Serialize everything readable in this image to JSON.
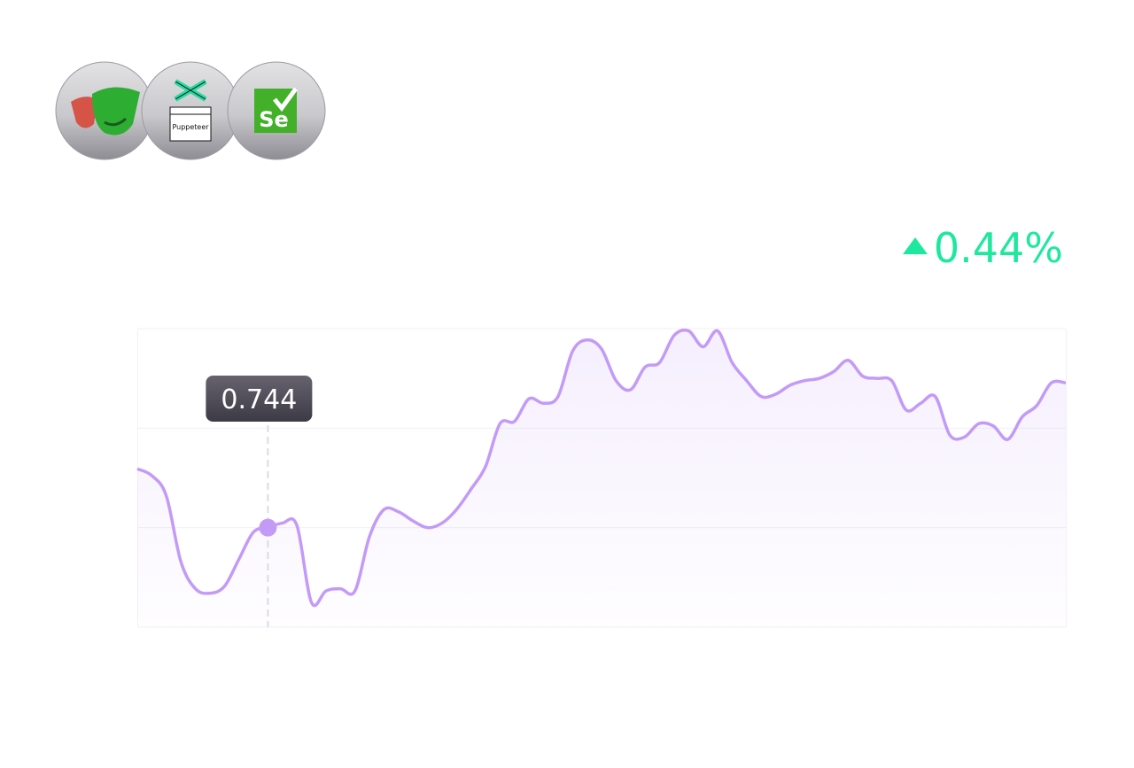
{
  "logo_texts": [
    "Puppeteer",
    "Se"
  ],
  "change": {
    "value": 0.44,
    "label": "0.44%",
    "color": "#1ee89e"
  },
  "chart_data": {
    "type": "area",
    "color": "#c39bf7",
    "highlight_index": 9,
    "values": [
      0.77,
      0.767,
      0.758,
      0.729,
      0.717,
      0.715,
      0.718,
      0.73,
      0.742,
      0.744,
      0.746,
      0.745,
      0.711,
      0.716,
      0.717,
      0.716,
      0.74,
      0.752,
      0.751,
      0.747,
      0.744,
      0.746,
      0.752,
      0.761,
      0.771,
      0.79,
      0.791,
      0.801,
      0.799,
      0.802,
      0.822,
      0.827,
      0.823,
      0.809,
      0.805,
      0.815,
      0.817,
      0.829,
      0.831,
      0.824,
      0.831,
      0.817,
      0.809,
      0.802,
      0.803,
      0.807,
      0.809,
      0.81,
      0.813,
      0.818,
      0.811,
      0.81,
      0.809,
      0.796,
      0.799,
      0.802,
      0.785,
      0.784,
      0.79,
      0.789,
      0.783,
      0.793,
      0.798,
      0.808,
      0.808
    ],
    "ylim": [
      0.7,
      0.832
    ],
    "yticks": [
      0.7,
      0.744,
      0.788,
      0.832
    ],
    "grid": true
  }
}
